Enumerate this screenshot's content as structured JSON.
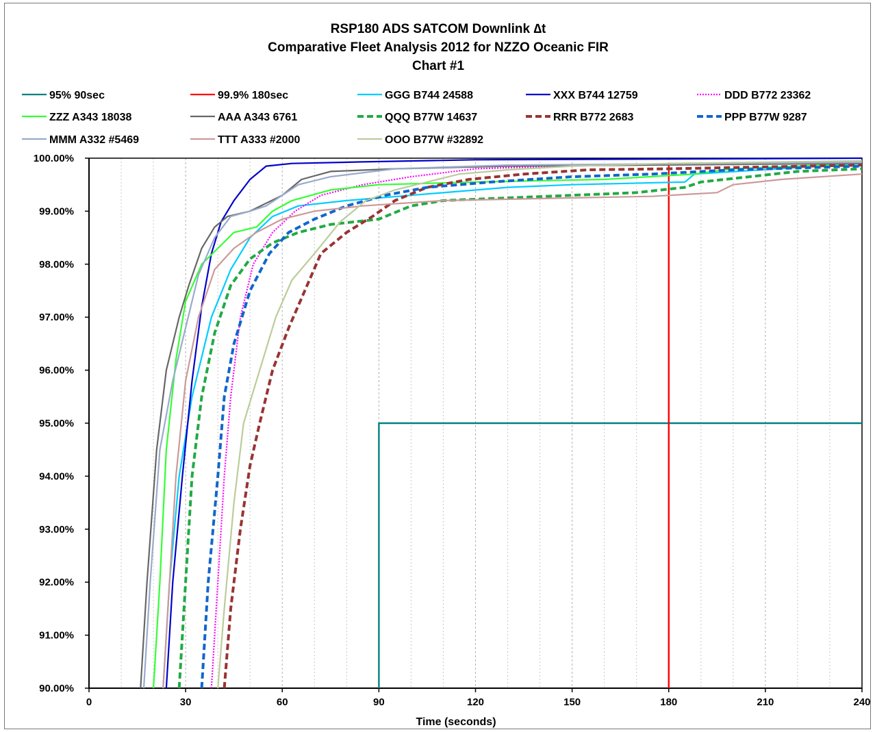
{
  "chart_data": {
    "type": "line",
    "title": [
      "RSP180 ADS  SATCOM  Downlink ∆t",
      "Comparative Fleet Analysis 2012 for  NZZO Oceanic FIR",
      "Chart #1"
    ],
    "xlabel": "Time (seconds)",
    "ylabel": "",
    "xlim": [
      0,
      240
    ],
    "ylim": [
      90,
      100
    ],
    "x_ticks": [
      "0",
      "30",
      "60",
      "90",
      "120",
      "150",
      "180",
      "210",
      "240"
    ],
    "y_ticks": [
      "90.00%",
      "91.00%",
      "92.00%",
      "93.00%",
      "94.00%",
      "95.00%",
      "96.00%",
      "97.00%",
      "98.00%",
      "99.00%",
      "100.00%"
    ],
    "grid": "vertical dashed every 10 s",
    "legend_position": "top",
    "series": [
      {
        "name": "95% 90sec",
        "color": "#008080",
        "style": "solid",
        "points": [
          [
            90,
            90
          ],
          [
            90,
            95
          ],
          [
            240,
            95
          ]
        ]
      },
      {
        "name": "99.9% 180sec",
        "color": "#ff0000",
        "style": "solid",
        "points": [
          [
            180,
            90
          ],
          [
            180,
            99.9
          ],
          [
            240,
            99.9
          ]
        ]
      },
      {
        "name": "GGG B744 24588",
        "color": "#00ccff",
        "style": "solid",
        "points": [
          [
            23,
            90
          ],
          [
            25,
            92
          ],
          [
            28,
            94
          ],
          [
            32,
            95.5
          ],
          [
            38,
            97
          ],
          [
            44,
            97.9
          ],
          [
            50,
            98.5
          ],
          [
            57,
            98.9
          ],
          [
            65,
            99.1
          ],
          [
            80,
            99.2
          ],
          [
            100,
            99.3
          ],
          [
            130,
            99.45
          ],
          [
            150,
            99.5
          ],
          [
            185,
            99.55
          ],
          [
            188,
            99.7
          ],
          [
            240,
            99.9
          ]
        ]
      },
      {
        "name": "XXX B744 12759",
        "color": "#0000cc",
        "style": "solid",
        "points": [
          [
            24,
            90
          ],
          [
            26,
            92
          ],
          [
            29,
            94
          ],
          [
            32,
            95.8
          ],
          [
            35,
            97.2
          ],
          [
            38,
            98.2
          ],
          [
            41,
            98.8
          ],
          [
            45,
            99.2
          ],
          [
            50,
            99.6
          ],
          [
            55,
            99.85
          ],
          [
            63,
            99.9
          ],
          [
            85,
            99.93
          ],
          [
            120,
            99.97
          ],
          [
            240,
            100
          ]
        ]
      },
      {
        "name": "DDD  B772 23362",
        "color": "#ff00ff",
        "style": "dotted",
        "points": [
          [
            38,
            90
          ],
          [
            40,
            92
          ],
          [
            42,
            94
          ],
          [
            44,
            95.5
          ],
          [
            47,
            97
          ],
          [
            51,
            98
          ],
          [
            57,
            98.6
          ],
          [
            64,
            99
          ],
          [
            72,
            99.3
          ],
          [
            85,
            99.5
          ],
          [
            100,
            99.65
          ],
          [
            120,
            99.8
          ],
          [
            145,
            99.85
          ],
          [
            180,
            99.88
          ],
          [
            240,
            99.95
          ]
        ]
      },
      {
        "name": "ZZZ A343 18038",
        "color": "#33ff33",
        "style": "solid",
        "points": [
          [
            20,
            90
          ],
          [
            22,
            92
          ],
          [
            24,
            94.5
          ],
          [
            27,
            96.2
          ],
          [
            30,
            97.3
          ],
          [
            35,
            98
          ],
          [
            40,
            98.3
          ],
          [
            45,
            98.6
          ],
          [
            52,
            98.7
          ],
          [
            57,
            99
          ],
          [
            63,
            99.2
          ],
          [
            75,
            99.4
          ],
          [
            90,
            99.5
          ],
          [
            120,
            99.55
          ],
          [
            160,
            99.6
          ],
          [
            188,
            99.7
          ],
          [
            200,
            99.8
          ],
          [
            240,
            99.9
          ]
        ]
      },
      {
        "name": "AAA A343 6761",
        "color": "#666666",
        "style": "solid",
        "points": [
          [
            16,
            90
          ],
          [
            18,
            92
          ],
          [
            21,
            94.5
          ],
          [
            24,
            96
          ],
          [
            28,
            97
          ],
          [
            31,
            97.6
          ],
          [
            35,
            98.3
          ],
          [
            39,
            98.7
          ],
          [
            43,
            98.9
          ],
          [
            50,
            99
          ],
          [
            55,
            99.15
          ],
          [
            60,
            99.3
          ],
          [
            66,
            99.6
          ],
          [
            75,
            99.75
          ],
          [
            95,
            99.8
          ],
          [
            130,
            99.85
          ],
          [
            240,
            99.9
          ]
        ]
      },
      {
        "name": "QQQ B77W 14637",
        "color": "#22aa44",
        "style": "dashed",
        "points": [
          [
            28,
            90
          ],
          [
            30,
            92
          ],
          [
            32,
            94
          ],
          [
            35,
            95.5
          ],
          [
            39,
            96.7
          ],
          [
            44,
            97.6
          ],
          [
            50,
            98.1
          ],
          [
            57,
            98.4
          ],
          [
            65,
            98.6
          ],
          [
            75,
            98.75
          ],
          [
            90,
            98.85
          ],
          [
            100,
            99.1
          ],
          [
            110,
            99.2
          ],
          [
            130,
            99.25
          ],
          [
            150,
            99.3
          ],
          [
            170,
            99.35
          ],
          [
            185,
            99.45
          ],
          [
            190,
            99.55
          ],
          [
            205,
            99.65
          ],
          [
            220,
            99.75
          ],
          [
            240,
            99.8
          ]
        ]
      },
      {
        "name": "RRR B772 2683",
        "color": "#993333",
        "style": "dashed",
        "points": [
          [
            42,
            90
          ],
          [
            44,
            91.5
          ],
          [
            47,
            93
          ],
          [
            50,
            94.2
          ],
          [
            53,
            95
          ],
          [
            57,
            96
          ],
          [
            62,
            96.8
          ],
          [
            67,
            97.5
          ],
          [
            72,
            98.2
          ],
          [
            80,
            98.6
          ],
          [
            88,
            98.9
          ],
          [
            95,
            99.2
          ],
          [
            105,
            99.45
          ],
          [
            118,
            99.6
          ],
          [
            135,
            99.7
          ],
          [
            155,
            99.78
          ],
          [
            180,
            99.8
          ],
          [
            240,
            99.87
          ]
        ]
      },
      {
        "name": "PPP B77W 9287",
        "color": "#1166cc",
        "style": "dashed",
        "points": [
          [
            35,
            90
          ],
          [
            37,
            92
          ],
          [
            40,
            94
          ],
          [
            42,
            95.5
          ],
          [
            45,
            96.5
          ],
          [
            50,
            97.5
          ],
          [
            56,
            98.2
          ],
          [
            62,
            98.6
          ],
          [
            70,
            98.85
          ],
          [
            80,
            99.1
          ],
          [
            92,
            99.3
          ],
          [
            105,
            99.45
          ],
          [
            125,
            99.55
          ],
          [
            150,
            99.65
          ],
          [
            175,
            99.7
          ],
          [
            200,
            99.78
          ],
          [
            240,
            99.85
          ]
        ]
      },
      {
        "name": "MMM A332 #5469",
        "color": "#99aacc",
        "style": "solid",
        "points": [
          [
            17,
            90
          ],
          [
            19,
            92
          ],
          [
            22,
            94.5
          ],
          [
            26,
            95.8
          ],
          [
            30,
            96.8
          ],
          [
            34,
            97.8
          ],
          [
            39,
            98.5
          ],
          [
            44,
            98.9
          ],
          [
            50,
            99
          ],
          [
            55,
            99.1
          ],
          [
            60,
            99.3
          ],
          [
            65,
            99.5
          ],
          [
            75,
            99.65
          ],
          [
            95,
            99.8
          ],
          [
            130,
            99.87
          ],
          [
            240,
            99.92
          ]
        ]
      },
      {
        "name": "TTT A333 #2000",
        "color": "#cc9999",
        "style": "solid",
        "points": [
          [
            23,
            90
          ],
          [
            25,
            92
          ],
          [
            27,
            94
          ],
          [
            30,
            95.8
          ],
          [
            34,
            97
          ],
          [
            39,
            97.9
          ],
          [
            45,
            98.3
          ],
          [
            52,
            98.6
          ],
          [
            60,
            98.85
          ],
          [
            70,
            99
          ],
          [
            85,
            99.1
          ],
          [
            110,
            99.2
          ],
          [
            150,
            99.25
          ],
          [
            175,
            99.28
          ],
          [
            195,
            99.35
          ],
          [
            200,
            99.5
          ],
          [
            215,
            99.6
          ],
          [
            240,
            99.7
          ]
        ]
      },
      {
        "name": "OOO B77W #32892",
        "color": "#bbcc99",
        "style": "solid",
        "points": [
          [
            40,
            90
          ],
          [
            42,
            91.5
          ],
          [
            45,
            93.5
          ],
          [
            48,
            95
          ],
          [
            53,
            96
          ],
          [
            58,
            97
          ],
          [
            63,
            97.7
          ],
          [
            70,
            98.2
          ],
          [
            78,
            98.8
          ],
          [
            86,
            99.2
          ],
          [
            95,
            99.4
          ],
          [
            105,
            99.55
          ],
          [
            115,
            99.7
          ],
          [
            130,
            99.78
          ],
          [
            150,
            99.85
          ],
          [
            180,
            99.9
          ],
          [
            240,
            99.95
          ]
        ]
      }
    ]
  }
}
